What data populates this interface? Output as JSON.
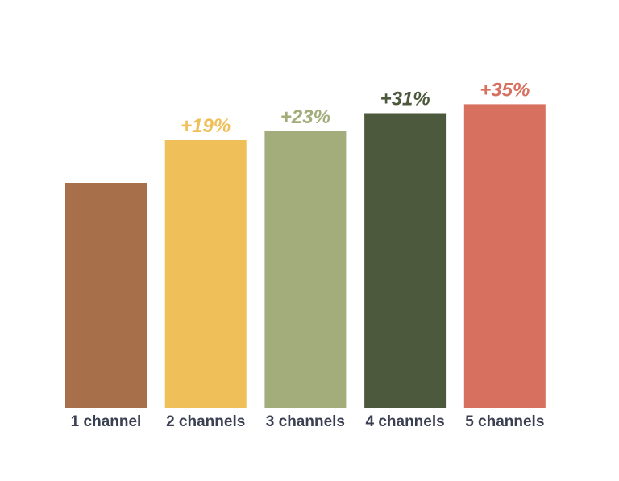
{
  "chart_data": {
    "type": "bar",
    "title": "",
    "xlabel": "",
    "ylabel": "",
    "categories": [
      "1 channel",
      "2 channels",
      "3 channels",
      "4 channels",
      "5 channels"
    ],
    "values": [
      100,
      119,
      123,
      131,
      135
    ],
    "data_labels": [
      "",
      "+19%",
      "+23%",
      "+31%",
      "+35%"
    ],
    "colors": [
      "#a8704a",
      "#efbf59",
      "#a2ad7b",
      "#4c593d",
      "#d7705f"
    ],
    "tick_label_color": "#3a3f52",
    "grid": false,
    "legend": "none",
    "axis_lines": false
  }
}
